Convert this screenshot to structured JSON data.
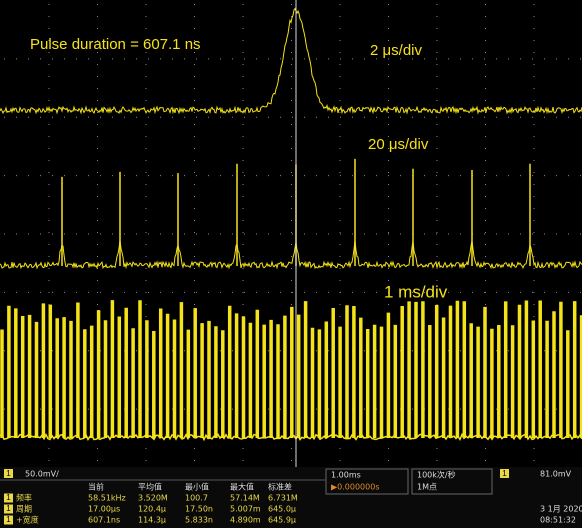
{
  "annotations": {
    "pulse_duration": "Pulse duration = 607.1 ns",
    "scale_1": "2 μs/div",
    "scale_2": "20 μs/div",
    "scale_3": "1 ms/div"
  },
  "status_bar": {
    "channel": "1",
    "channel_scale": "50.0mV/",
    "timebase": "1.00ms",
    "delay": "▶0.000000s",
    "acquisition": "100k次/秒",
    "memory": "1M点",
    "trigger_level": "81.0mV",
    "date": "3 1月 2020",
    "time": "08:51:32",
    "measurements": {
      "headers": [
        "当前",
        "平均值",
        "最小值",
        "最大值",
        "标准差"
      ],
      "rows": [
        {
          "label": "频率",
          "values": [
            "58.51kHz",
            "3.520M",
            "100.7",
            "57.14M",
            "6.731M"
          ]
        },
        {
          "label": "周期",
          "values": [
            "17.00μs",
            "120.4μ",
            "17.50n",
            "5.007m",
            "645.0μ"
          ]
        },
        {
          "label": "+宽度",
          "values": [
            "607.1ns",
            "114.3μ",
            "5.833n",
            "4.890m",
            "645.9μ"
          ]
        }
      ]
    }
  }
}
